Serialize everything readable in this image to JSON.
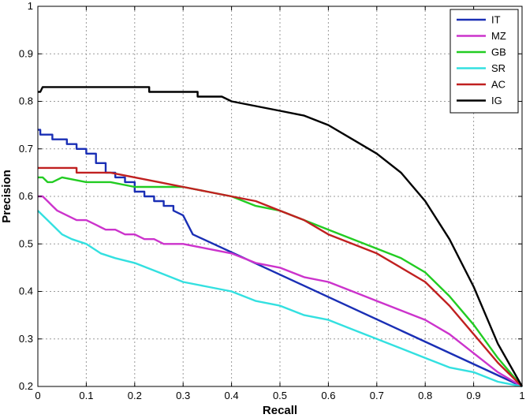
{
  "chart_data": {
    "type": "line",
    "title": "",
    "xlabel": "Recall",
    "ylabel": "Precision",
    "xlim": [
      0,
      1
    ],
    "ylim": [
      0.2,
      1
    ],
    "xticks": [
      "0",
      "0.1",
      "0.2",
      "0.3",
      "0.4",
      "0.5",
      "0.6",
      "0.7",
      "0.8",
      "0.9",
      "1"
    ],
    "yticks": [
      "0.2",
      "0.3",
      "0.4",
      "0.5",
      "0.6",
      "0.7",
      "0.8",
      "0.9",
      "1"
    ],
    "grid": true,
    "legend_position": "top-right",
    "series": [
      {
        "name": "IT",
        "color": "#1a2fb5",
        "x": [
          0.0,
          0.005,
          0.005,
          0.03,
          0.03,
          0.06,
          0.06,
          0.08,
          0.08,
          0.1,
          0.1,
          0.12,
          0.12,
          0.14,
          0.14,
          0.16,
          0.16,
          0.18,
          0.18,
          0.2,
          0.2,
          0.22,
          0.22,
          0.24,
          0.24,
          0.26,
          0.26,
          0.28,
          0.28,
          0.3,
          0.31,
          0.32,
          1.0
        ],
        "y": [
          0.74,
          0.74,
          0.73,
          0.73,
          0.72,
          0.72,
          0.71,
          0.71,
          0.7,
          0.7,
          0.69,
          0.69,
          0.67,
          0.67,
          0.65,
          0.65,
          0.64,
          0.64,
          0.63,
          0.63,
          0.61,
          0.61,
          0.6,
          0.6,
          0.59,
          0.59,
          0.58,
          0.58,
          0.57,
          0.56,
          0.54,
          0.52,
          0.2
        ]
      },
      {
        "name": "MZ",
        "color": "#cc33cc",
        "x": [
          0.0,
          0.01,
          0.02,
          0.03,
          0.04,
          0.06,
          0.08,
          0.1,
          0.12,
          0.14,
          0.16,
          0.18,
          0.2,
          0.22,
          0.24,
          0.26,
          0.3,
          0.35,
          0.4,
          0.45,
          0.5,
          0.55,
          0.6,
          0.65,
          0.7,
          0.75,
          0.8,
          0.85,
          0.9,
          0.95,
          1.0
        ],
        "y": [
          0.6,
          0.6,
          0.59,
          0.58,
          0.57,
          0.56,
          0.55,
          0.55,
          0.54,
          0.53,
          0.53,
          0.52,
          0.52,
          0.51,
          0.51,
          0.5,
          0.5,
          0.49,
          0.48,
          0.46,
          0.45,
          0.43,
          0.42,
          0.4,
          0.38,
          0.36,
          0.34,
          0.31,
          0.27,
          0.23,
          0.2
        ]
      },
      {
        "name": "GB",
        "color": "#22cc22",
        "x": [
          0.0,
          0.01,
          0.02,
          0.03,
          0.05,
          0.1,
          0.15,
          0.2,
          0.25,
          0.3,
          0.35,
          0.4,
          0.45,
          0.5,
          0.55,
          0.6,
          0.65,
          0.7,
          0.75,
          0.8,
          0.85,
          0.9,
          0.95,
          1.0
        ],
        "y": [
          0.64,
          0.64,
          0.63,
          0.63,
          0.64,
          0.63,
          0.63,
          0.62,
          0.62,
          0.62,
          0.61,
          0.6,
          0.58,
          0.57,
          0.55,
          0.53,
          0.51,
          0.49,
          0.47,
          0.44,
          0.39,
          0.33,
          0.26,
          0.2
        ]
      },
      {
        "name": "SR",
        "color": "#33e0e0",
        "x": [
          0.0,
          0.01,
          0.02,
          0.03,
          0.05,
          0.07,
          0.1,
          0.13,
          0.16,
          0.2,
          0.25,
          0.3,
          0.35,
          0.4,
          0.45,
          0.5,
          0.55,
          0.6,
          0.65,
          0.7,
          0.75,
          0.8,
          0.85,
          0.9,
          0.95,
          1.0
        ],
        "y": [
          0.57,
          0.56,
          0.55,
          0.54,
          0.52,
          0.51,
          0.5,
          0.48,
          0.47,
          0.46,
          0.44,
          0.42,
          0.41,
          0.4,
          0.38,
          0.37,
          0.35,
          0.34,
          0.32,
          0.3,
          0.28,
          0.26,
          0.24,
          0.23,
          0.21,
          0.2
        ]
      },
      {
        "name": "AC",
        "color": "#c02020",
        "x": [
          0.0,
          0.02,
          0.05,
          0.08,
          0.08,
          0.15,
          0.2,
          0.25,
          0.3,
          0.35,
          0.4,
          0.45,
          0.5,
          0.55,
          0.6,
          0.65,
          0.7,
          0.75,
          0.8,
          0.85,
          0.9,
          0.95,
          1.0
        ],
        "y": [
          0.66,
          0.66,
          0.66,
          0.66,
          0.65,
          0.65,
          0.64,
          0.63,
          0.62,
          0.61,
          0.6,
          0.59,
          0.57,
          0.55,
          0.52,
          0.5,
          0.48,
          0.45,
          0.42,
          0.37,
          0.31,
          0.25,
          0.2
        ]
      },
      {
        "name": "IG",
        "color": "#000000",
        "x": [
          0.0,
          0.005,
          0.01,
          0.02,
          0.05,
          0.1,
          0.15,
          0.2,
          0.23,
          0.23,
          0.3,
          0.33,
          0.33,
          0.38,
          0.4,
          0.45,
          0.5,
          0.55,
          0.6,
          0.65,
          0.7,
          0.75,
          0.8,
          0.85,
          0.9,
          0.95,
          1.0
        ],
        "y": [
          0.82,
          0.82,
          0.83,
          0.83,
          0.83,
          0.83,
          0.83,
          0.83,
          0.83,
          0.82,
          0.82,
          0.82,
          0.81,
          0.81,
          0.8,
          0.79,
          0.78,
          0.77,
          0.75,
          0.72,
          0.69,
          0.65,
          0.59,
          0.51,
          0.41,
          0.29,
          0.2
        ]
      }
    ]
  }
}
